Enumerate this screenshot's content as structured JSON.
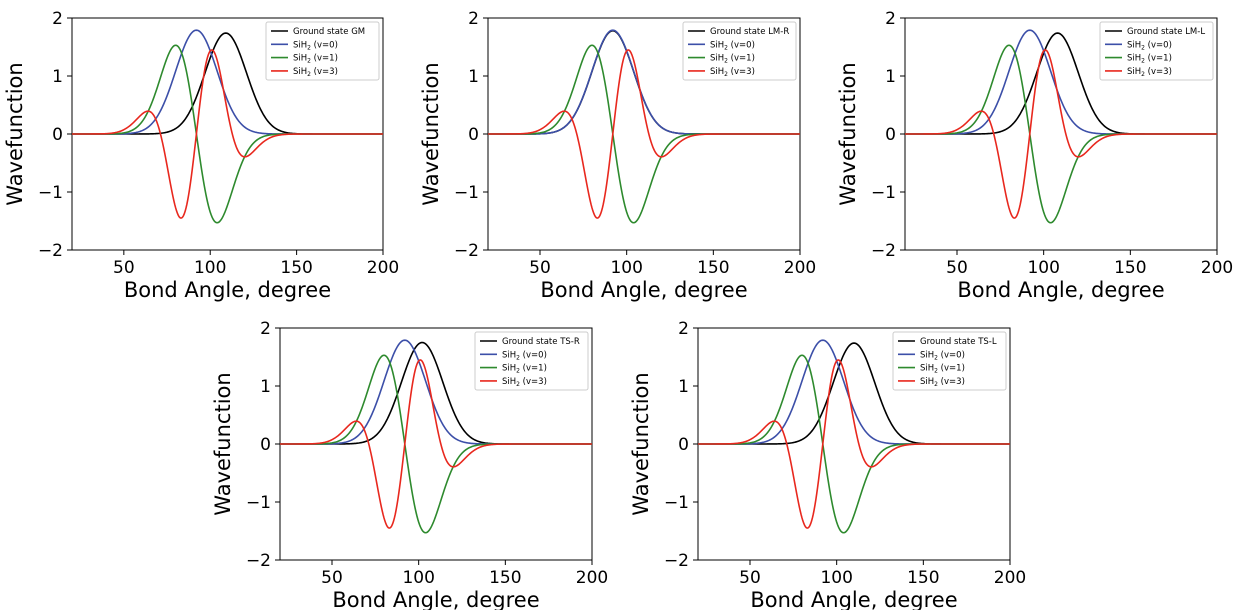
{
  "chart_data": [
    {
      "type": "line",
      "xlabel": "Bond Angle, degree",
      "ylabel": "Wavefunction",
      "xlim": [
        20,
        200
      ],
      "ylim": [
        -2,
        2
      ],
      "xticks": [
        "50",
        "100",
        "150",
        "200"
      ],
      "yticks": [
        "−2",
        "−1",
        "0",
        "1",
        "2"
      ],
      "legend_position": "top-right",
      "series": [
        {
          "name": "Ground state GM",
          "color": "#000000",
          "kind": "v0",
          "center": 109,
          "amplitude": 1.74,
          "width": 12
        },
        {
          "name_parts": [
            "SiH",
            "2",
            " (v=0)"
          ],
          "color": "#3c4fa8",
          "kind": "v0",
          "center": 92,
          "amplitude": 1.79,
          "width": 12
        },
        {
          "name_parts": [
            "SiH",
            "2",
            " (v=1)"
          ],
          "color": "#2e8a2e",
          "kind": "v1",
          "center": 92,
          "amplitude": 1.53,
          "width": 12
        },
        {
          "name_parts": [
            "SiH",
            "2",
            " (v=3)"
          ],
          "color": "#e8281e",
          "kind": "v3",
          "center": 92,
          "amplitude": 1.45,
          "width": 12
        }
      ]
    },
    {
      "type": "line",
      "xlabel": "Bond Angle, degree",
      "ylabel": "Wavefunction",
      "xlim": [
        20,
        200
      ],
      "ylim": [
        -2,
        2
      ],
      "xticks": [
        "50",
        "100",
        "150",
        "200"
      ],
      "yticks": [
        "−2",
        "−1",
        "0",
        "1",
        "2"
      ],
      "legend_position": "top-right",
      "series": [
        {
          "name": "Ground state LM-R",
          "color": "#000000",
          "kind": "v0",
          "center": 92,
          "amplitude": 1.78,
          "width": 12
        },
        {
          "name_parts": [
            "SiH",
            "2",
            " (v=0)"
          ],
          "color": "#3c4fa8",
          "kind": "v0",
          "center": 92,
          "amplitude": 1.79,
          "width": 12
        },
        {
          "name_parts": [
            "SiH",
            "2",
            " (v=1)"
          ],
          "color": "#2e8a2e",
          "kind": "v1",
          "center": 92,
          "amplitude": 1.53,
          "width": 12
        },
        {
          "name_parts": [
            "SiH",
            "2",
            " (v=3)"
          ],
          "color": "#e8281e",
          "kind": "v3",
          "center": 92,
          "amplitude": 1.45,
          "width": 12
        }
      ]
    },
    {
      "type": "line",
      "xlabel": "Bond Angle, degree",
      "ylabel": "Wavefunction",
      "xlim": [
        20,
        200
      ],
      "ylim": [
        -2,
        2
      ],
      "xticks": [
        "50",
        "100",
        "150",
        "200"
      ],
      "yticks": [
        "−2",
        "−1",
        "0",
        "1",
        "2"
      ],
      "legend_position": "top-right",
      "series": [
        {
          "name": "Ground state LM-L",
          "color": "#000000",
          "kind": "v0",
          "center": 108,
          "amplitude": 1.74,
          "width": 12
        },
        {
          "name_parts": [
            "SiH",
            "2",
            " (v=0)"
          ],
          "color": "#3c4fa8",
          "kind": "v0",
          "center": 92,
          "amplitude": 1.79,
          "width": 12
        },
        {
          "name_parts": [
            "SiH",
            "2",
            " (v=1)"
          ],
          "color": "#2e8a2e",
          "kind": "v1",
          "center": 92,
          "amplitude": 1.53,
          "width": 12
        },
        {
          "name_parts": [
            "SiH",
            "2",
            " (v=3)"
          ],
          "color": "#e8281e",
          "kind": "v3",
          "center": 92,
          "amplitude": 1.45,
          "width": 12
        }
      ]
    },
    {
      "type": "line",
      "xlabel": "Bond Angle, degree",
      "ylabel": "Wavefunction",
      "xlim": [
        20,
        200
      ],
      "ylim": [
        -2,
        2
      ],
      "xticks": [
        "50",
        "100",
        "150",
        "200"
      ],
      "yticks": [
        "−2",
        "−1",
        "0",
        "1",
        "2"
      ],
      "legend_position": "top-right",
      "series": [
        {
          "name": "Ground state TS-R",
          "color": "#000000",
          "kind": "v0",
          "center": 102,
          "amplitude": 1.75,
          "width": 12
        },
        {
          "name_parts": [
            "SiH",
            "2",
            " (v=0)"
          ],
          "color": "#3c4fa8",
          "kind": "v0",
          "center": 92,
          "amplitude": 1.79,
          "width": 12
        },
        {
          "name_parts": [
            "SiH",
            "2",
            " (v=1)"
          ],
          "color": "#2e8a2e",
          "kind": "v1",
          "center": 92,
          "amplitude": 1.53,
          "width": 12
        },
        {
          "name_parts": [
            "SiH",
            "2",
            " (v=3)"
          ],
          "color": "#e8281e",
          "kind": "v3",
          "center": 92,
          "amplitude": 1.45,
          "width": 12
        }
      ]
    },
    {
      "type": "line",
      "xlabel": "Bond Angle, degree",
      "ylabel": "Wavefunction",
      "xlim": [
        20,
        200
      ],
      "ylim": [
        -2,
        2
      ],
      "xticks": [
        "50",
        "100",
        "150",
        "200"
      ],
      "yticks": [
        "−2",
        "−1",
        "0",
        "1",
        "2"
      ],
      "legend_position": "top-right",
      "series": [
        {
          "name": "Ground state TS-L",
          "color": "#000000",
          "kind": "v0",
          "center": 110,
          "amplitude": 1.74,
          "width": 12
        },
        {
          "name_parts": [
            "SiH",
            "2",
            " (v=0)"
          ],
          "color": "#3c4fa8",
          "kind": "v0",
          "center": 92,
          "amplitude": 1.79,
          "width": 12
        },
        {
          "name_parts": [
            "SiH",
            "2",
            " (v=1)"
          ],
          "color": "#2e8a2e",
          "kind": "v1",
          "center": 92,
          "amplitude": 1.53,
          "width": 12
        },
        {
          "name_parts": [
            "SiH",
            "2",
            " (v=3)"
          ],
          "color": "#e8281e",
          "kind": "v3",
          "center": 92,
          "amplitude": 1.45,
          "width": 12
        }
      ]
    }
  ]
}
